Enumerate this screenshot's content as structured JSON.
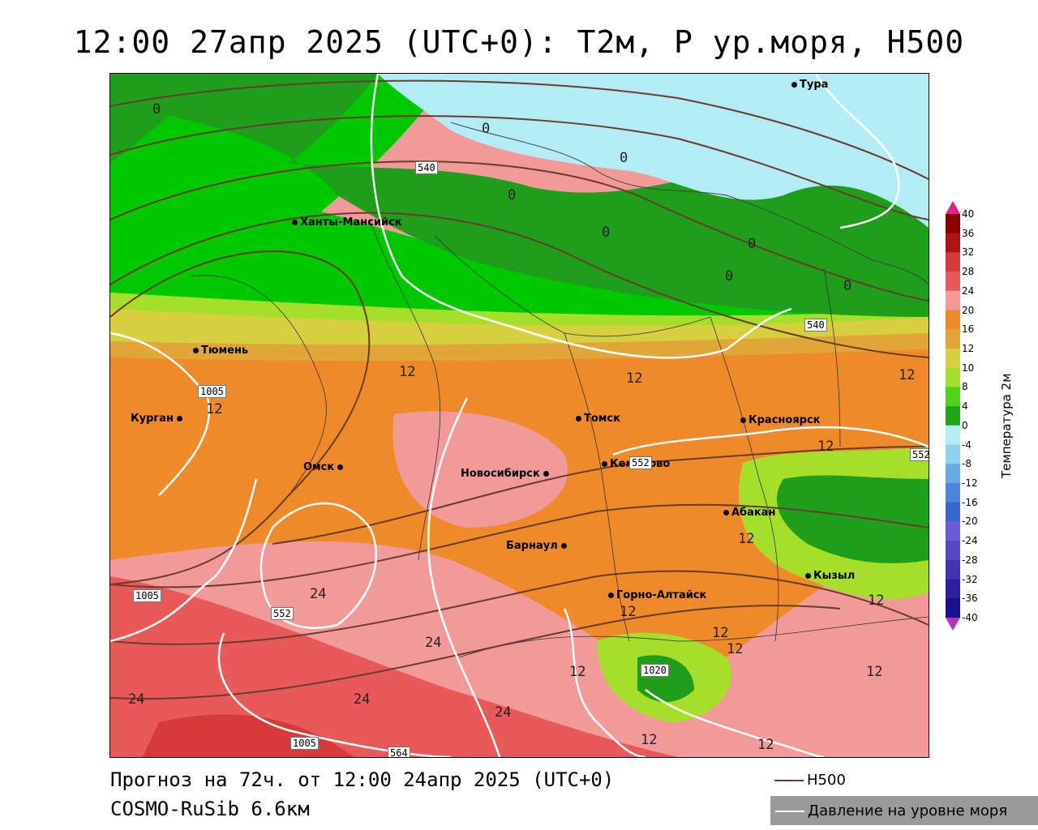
{
  "title": "12:00 27апр 2025 (UTC+0): T2м, P ур.моря, H500",
  "footer": {
    "forecast": "Прогноз на 72ч. от 12:00 24апр 2025 (UTC+0)",
    "model": "COSMO-RuSib 6.6км"
  },
  "legend": {
    "h500_label": "H500",
    "h500_color": "#6b3b2e",
    "pressure_label": "Давление на уровне моря",
    "pressure_color": "#ffffff"
  },
  "colorbar": {
    "title": "Температура 2м",
    "ticks": [
      "40",
      "36",
      "32",
      "28",
      "24",
      "20",
      "16",
      "12",
      "10",
      "8",
      "4",
      "0",
      "-4",
      "-8",
      "-12",
      "-16",
      "-20",
      "-24",
      "-28",
      "-32",
      "-36",
      "-40"
    ],
    "colors": [
      "#8b0000",
      "#b01515",
      "#d63a3a",
      "#e85a5a",
      "#f29a9a",
      "#ee8a2a",
      "#e0a63a",
      "#d8cf40",
      "#a6df2a",
      "#4fd21a",
      "#1ea51a",
      "#b3ecf5",
      "#8fd1ee",
      "#6aa8e6",
      "#4a86de",
      "#3a66d0",
      "#6a5cd8",
      "#5a46c8",
      "#4232b4",
      "#2c20a0",
      "#1a108a"
    ]
  },
  "cities": [
    {
      "name": "Тура"
    },
    {
      "name": "Ханты-Мансийск"
    },
    {
      "name": "Тюмень"
    },
    {
      "name": "Курган"
    },
    {
      "name": "Омск"
    },
    {
      "name": "Новосибирск"
    },
    {
      "name": "Томск"
    },
    {
      "name": "Красноярск"
    },
    {
      "name": "Кемерово"
    },
    {
      "name": "Абакан"
    },
    {
      "name": "Барнаул"
    },
    {
      "name": "Горно-Алтайск"
    },
    {
      "name": "Кызыл"
    }
  ],
  "contour_labels": {
    "zero": "0",
    "twelve": "12",
    "twentyfour": "24"
  },
  "isobar_labels": {
    "h540": "540",
    "h552": "552",
    "h564": "564",
    "p1005": "1005",
    "p1020": "1020"
  }
}
